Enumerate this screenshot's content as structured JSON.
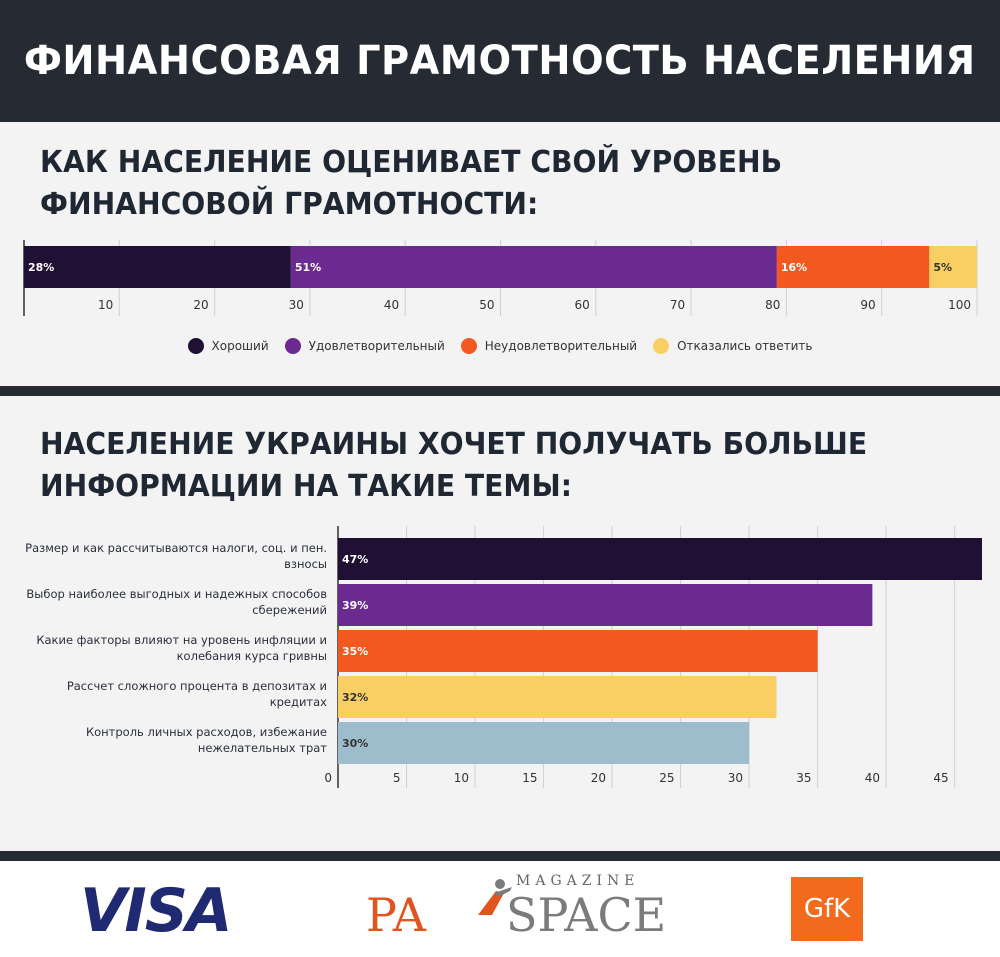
{
  "header": {
    "title": "ФИНАНСОВАЯ ГРАМОТНОСТЬ НАСЕЛЕНИЯ"
  },
  "sections": {
    "self_assessment_title": "КАК НАСЕЛЕНИЕ ОЦЕНИВАЕТ СВОЙ УРОВЕНЬ ФИНАНСОВОЙ ГРАМОТНОСТИ:",
    "topics_title": "НАСЕЛЕНИЕ УКРАИНЫ ХОЧЕТ ПОЛУЧАТЬ БОЛЬШЕ ИНФОРМАЦИИ НА ТАКИЕ ТЕМЫ:"
  },
  "chart_data": [
    {
      "type": "bar",
      "orientation": "stacked-horizontal",
      "title": "КАК НАСЕЛЕНИЕ ОЦЕНИВАЕТ СВОЙ УРОВЕНЬ ФИНАНСОВОЙ ГРАМОТНОСТИ:",
      "series": [
        {
          "name": "Хороший",
          "value": 28,
          "label": "28%",
          "color": "#1f1034"
        },
        {
          "name": "Удовлетворительный",
          "value": 51,
          "label": "51%",
          "color": "#6b2a8f"
        },
        {
          "name": "Неудовлетворительный",
          "value": 16,
          "label": "16%",
          "color": "#f2581f"
        },
        {
          "name": "Отказались ответить",
          "value": 5,
          "label": "5%",
          "color": "#f9cf63"
        }
      ],
      "xlim": [
        0,
        100
      ],
      "xticks": [
        "10",
        "20",
        "30",
        "40",
        "50",
        "60",
        "70",
        "80",
        "90",
        "100"
      ],
      "grid": true,
      "legend": "bottom"
    },
    {
      "type": "bar",
      "orientation": "horizontal",
      "title": "НАСЕЛЕНИЕ УКРАИНЫ ХОЧЕТ ПОЛУЧАТЬ БОЛЬШЕ ИНФОРМАЦИИ НА ТАКИЕ ТЕМЫ:",
      "categories": [
        [
          "Размер и как рассчитываются налоги, соц. и пен.",
          "взносы"
        ],
        [
          "Выбор наиболее выгодных и надежных способов",
          "сбережений"
        ],
        [
          "Какие факторы влияют на уровень инфляции и",
          "колебания курса гривны"
        ],
        [
          "Рассчет сложного процента в депозитах и",
          "кредитах"
        ],
        [
          "Контроль личных расходов, избежание",
          "нежелательных трат"
        ]
      ],
      "values": [
        47,
        39,
        35,
        32,
        30
      ],
      "labels": [
        "47%",
        "39%",
        "35%",
        "32%",
        "30%"
      ],
      "colors": [
        "#1f1034",
        "#6b2a8f",
        "#f2581f",
        "#f9cf63",
        "#9ebdcc"
      ],
      "xlim": [
        0,
        47
      ],
      "xticks": [
        "0",
        "5",
        "10",
        "15",
        "20",
        "25",
        "30",
        "35",
        "40",
        "45"
      ],
      "grid": true
    }
  ],
  "logos": {
    "visa": "VISA",
    "payspace_magazine": "MAGAZINE",
    "payspace_pay": "PA",
    "payspace_space": "SPACE",
    "gfk": "GfK"
  }
}
